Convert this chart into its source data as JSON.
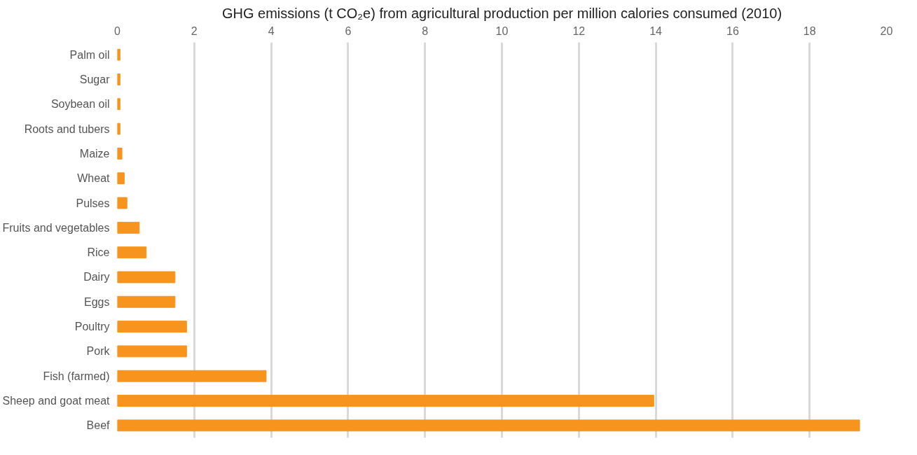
{
  "chart_data": {
    "type": "bar",
    "orientation": "horizontal",
    "title": "GHG emissions (t CO₂e) from agricultural production per million calories consumed (2010)",
    "categories": [
      "Palm oil",
      "Sugar",
      "Soybean oil",
      "Roots and tubers",
      "Maize",
      "Wheat",
      "Pulses",
      "Fruits and vegetables",
      "Rice",
      "Dairy",
      "Eggs",
      "Poultry",
      "Pork",
      "Fish (farmed)",
      "Sheep and goat meat",
      "Beef"
    ],
    "values": [
      0.07,
      0.07,
      0.07,
      0.07,
      0.12,
      0.18,
      0.25,
      0.57,
      0.75,
      1.5,
      1.5,
      1.8,
      1.8,
      3.87,
      13.95,
      19.3
    ],
    "color": "#f7941d",
    "xlim": [
      0,
      20
    ],
    "xticks": [
      0,
      2,
      4,
      6,
      8,
      10,
      12,
      14,
      16,
      18,
      20
    ],
    "grid": "x"
  }
}
